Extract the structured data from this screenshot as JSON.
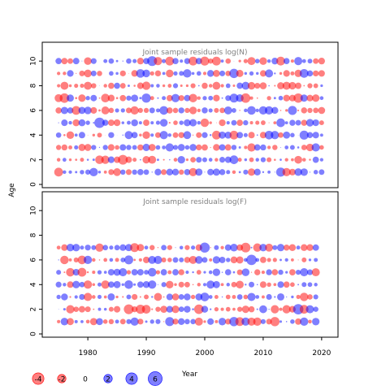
{
  "chart_data": {
    "type": "bubble",
    "ylabel": "Age",
    "xlabel": "Year",
    "x_ticks": [
      1980,
      1990,
      2000,
      2010,
      2020
    ],
    "colors": {
      "positive": "#0000ff",
      "negative": "#ff0000"
    },
    "legend": {
      "placement": "bottom-left",
      "values": [
        -4,
        -2,
        0,
        2,
        4,
        6
      ],
      "labels": [
        "-4",
        "-2",
        "0",
        "2",
        "4",
        "6"
      ]
    },
    "panels": [
      {
        "title": "Joint sample residuals log(N)",
        "years": [
          1975,
          2020
        ],
        "ages": [
          1,
          10
        ],
        "ylim": [
          0,
          11
        ],
        "y_ticks": [
          0,
          2,
          4,
          6,
          8,
          10
        ],
        "tick_labels": [
          "0",
          "2",
          "4",
          "6",
          "8",
          "10"
        ],
        "max_abs": 3.2,
        "seed": 12345
      },
      {
        "title": "Joint sample residuals log(F)",
        "years": [
          1975,
          2019
        ],
        "ages": [
          1,
          7
        ],
        "ylim": [
          0,
          11
        ],
        "y_ticks": [
          0,
          2,
          4,
          6,
          8,
          10
        ],
        "tick_labels": [
          "0",
          "2",
          "4",
          "6",
          "8",
          "10"
        ],
        "max_abs": 3.2,
        "seed": 67890
      }
    ]
  }
}
